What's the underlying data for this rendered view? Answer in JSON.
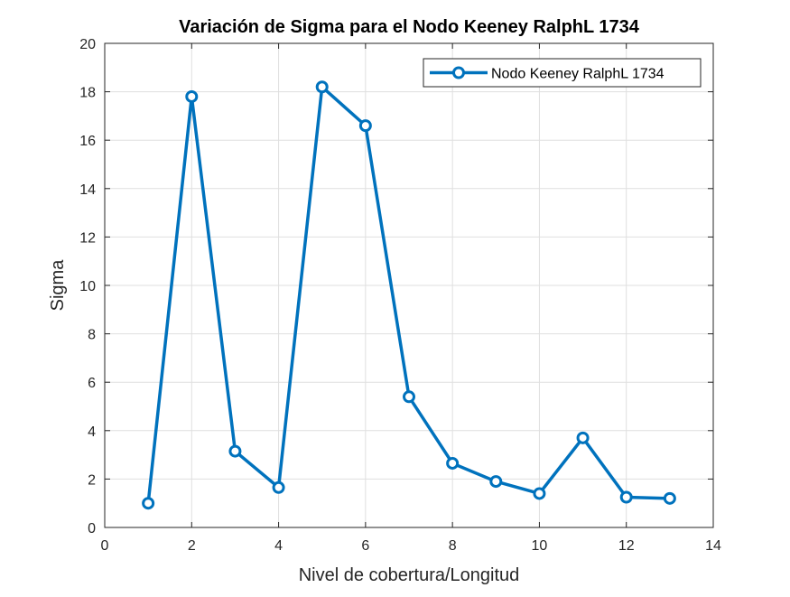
{
  "chart_data": {
    "type": "line",
    "title": "Variación de Sigma para el Nodo Keeney RalphL 1734",
    "xlabel": "Nivel de cobertura/Longitud",
    "ylabel": "Sigma",
    "xlim": [
      0,
      14
    ],
    "ylim": [
      0,
      20
    ],
    "xticks": [
      0,
      2,
      4,
      6,
      8,
      10,
      12,
      14
    ],
    "yticks": [
      0,
      2,
      4,
      6,
      8,
      10,
      12,
      14,
      16,
      18,
      20
    ],
    "grid": true,
    "legend_position": "top-right",
    "series": [
      {
        "name": "Nodo Keeney RalphL 1734",
        "color": "#0072BD",
        "marker": "circle",
        "x": [
          1,
          2,
          3,
          4,
          5,
          6,
          7,
          8,
          9,
          10,
          11,
          12,
          13
        ],
        "y": [
          1.0,
          17.8,
          3.15,
          1.65,
          18.2,
          16.6,
          5.4,
          2.65,
          1.9,
          1.4,
          3.7,
          1.25,
          1.2
        ]
      }
    ]
  }
}
